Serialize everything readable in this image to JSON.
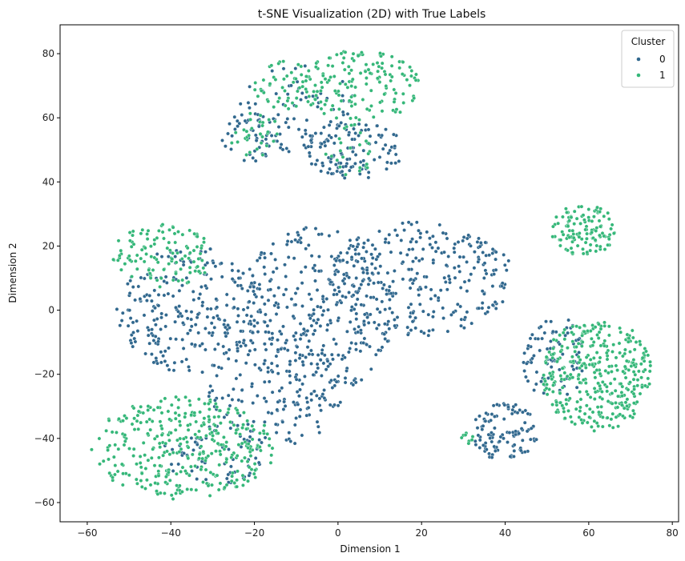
{
  "chart_data": {
    "type": "scatter",
    "title": "t-SNE Visualization (2D) with True Labels",
    "xlabel": "Dimension 1",
    "ylabel": "Dimension 2",
    "xlim": [
      -66.5,
      81.5
    ],
    "ylim": [
      -66,
      89
    ],
    "xticks": [
      -60,
      -40,
      -20,
      0,
      20,
      40,
      60,
      80
    ],
    "yticks": [
      -60,
      -40,
      -20,
      0,
      20,
      40,
      60,
      80
    ],
    "grid": false,
    "legend": {
      "title": "Cluster",
      "placement": "top-right",
      "entries": [
        "0",
        "1"
      ]
    },
    "series": [
      {
        "name": "0",
        "color": "#31688e",
        "clusters": [
          {
            "cx": 4,
            "cy": 50,
            "rx": 12,
            "ry": 9,
            "n": 120
          },
          {
            "cx": -10,
            "cy": 63,
            "rx": 14,
            "ry": 14,
            "n": 70
          },
          {
            "cx": -20,
            "cy": 54,
            "rx": 8,
            "ry": 8,
            "n": 45
          },
          {
            "cx": -35,
            "cy": 0,
            "rx": 18,
            "ry": 20,
            "n": 260
          },
          {
            "cx": -5,
            "cy": 0,
            "rx": 20,
            "ry": 26,
            "n": 320
          },
          {
            "cx": 20,
            "cy": 10,
            "rx": 22,
            "ry": 18,
            "n": 280
          },
          {
            "cx": -15,
            "cy": -25,
            "rx": 16,
            "ry": 18,
            "n": 150
          },
          {
            "cx": -30,
            "cy": -45,
            "rx": 12,
            "ry": 10,
            "n": 60
          },
          {
            "cx": 40,
            "cy": -38,
            "rx": 8,
            "ry": 9,
            "n": 110
          },
          {
            "cx": 52,
            "cy": -15,
            "rx": 8,
            "ry": 13,
            "n": 80
          }
        ]
      },
      {
        "name": "1",
        "color": "#35b779",
        "clusters": [
          {
            "cx": 5,
            "cy": 70,
            "rx": 15,
            "ry": 11,
            "n": 150
          },
          {
            "cx": -12,
            "cy": 70,
            "rx": 8,
            "ry": 8,
            "n": 50
          },
          {
            "cx": -20,
            "cy": 55,
            "rx": 6,
            "ry": 7,
            "n": 30
          },
          {
            "cx": 3,
            "cy": 50,
            "rx": 6,
            "ry": 8,
            "n": 25
          },
          {
            "cx": -42,
            "cy": 17,
            "rx": 12,
            "ry": 10,
            "n": 120
          },
          {
            "cx": -37,
            "cy": -43,
            "rx": 22,
            "ry": 16,
            "n": 360
          },
          {
            "cx": 62,
            "cy": -20,
            "rx": 13,
            "ry": 18,
            "n": 360
          },
          {
            "cx": 59,
            "cy": 25,
            "rx": 8,
            "ry": 8,
            "n": 120
          },
          {
            "cx": 31,
            "cy": -40,
            "rx": 2,
            "ry": 2,
            "n": 8
          }
        ]
      }
    ]
  }
}
